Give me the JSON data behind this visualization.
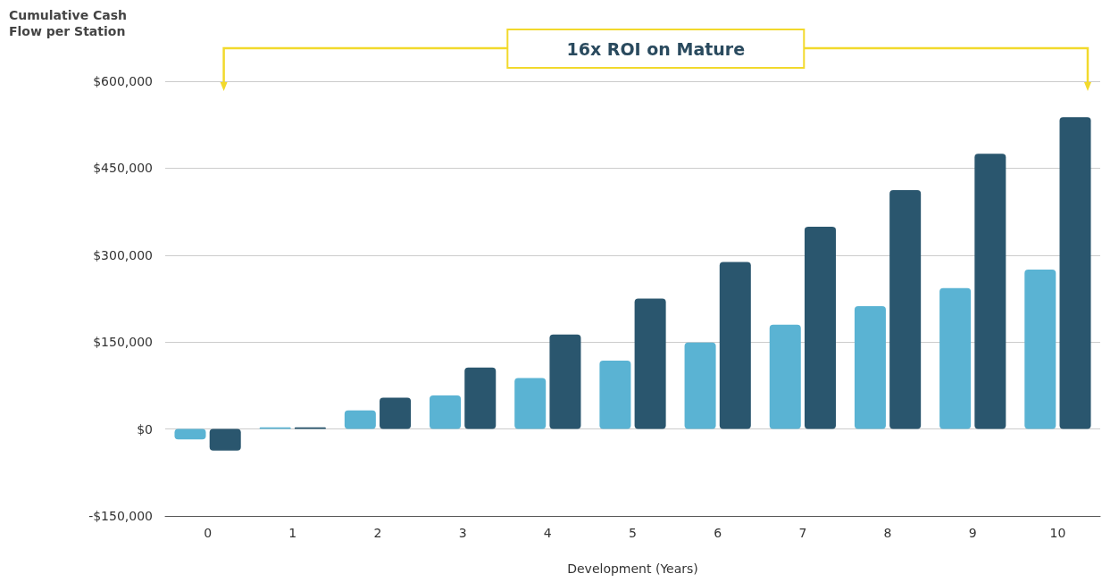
{
  "chart_data": {
    "type": "bar",
    "ylabel": "Cumulative Cash\nFlow per Station",
    "xlabel": "Development (Years)",
    "annotations": [
      "16x ROI on Mature"
    ],
    "categories": [
      "0",
      "1",
      "2",
      "3",
      "4",
      "5",
      "6",
      "7",
      "8",
      "9",
      "10"
    ],
    "series": [
      {
        "color": "#5ab3d3",
        "values": [
          -18000,
          3000,
          32000,
          58000,
          88000,
          118000,
          149000,
          180000,
          212000,
          243000,
          275000
        ]
      },
      {
        "color": "#2a566e",
        "values": [
          -37000,
          3000,
          54000,
          106000,
          163000,
          225000,
          288000,
          349000,
          412000,
          475000,
          538000
        ]
      }
    ],
    "ylim": [
      -150000,
      600000
    ],
    "yticks": [
      {
        "value": -150000,
        "label": "-$150,000"
      },
      {
        "value": 0,
        "label": "$0"
      },
      {
        "value": 150000,
        "label": "$150,000"
      },
      {
        "value": 300000,
        "label": "$300,000"
      },
      {
        "value": 450000,
        "label": "$450,000"
      },
      {
        "value": 600000,
        "label": "$600,000"
      }
    ],
    "grid": "y"
  }
}
